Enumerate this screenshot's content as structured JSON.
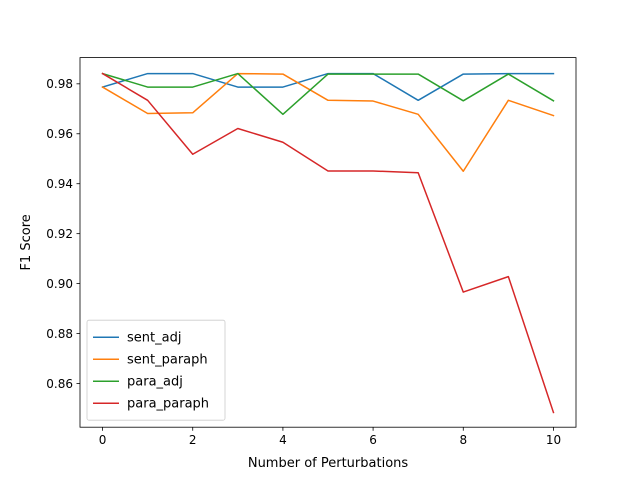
{
  "chart_data": {
    "type": "line",
    "title": "",
    "xlabel": "Number of Perturbations",
    "ylabel": "F1 Score",
    "xlim": [
      -0.5,
      10.5
    ],
    "ylim": [
      0.8425,
      0.9905
    ],
    "x_ticks": [
      0,
      2,
      4,
      6,
      8,
      10
    ],
    "x_tick_labels": [
      "0",
      "2",
      "4",
      "6",
      "8",
      "10"
    ],
    "y_ticks": [
      0.86,
      0.88,
      0.9,
      0.92,
      0.94,
      0.96,
      0.98
    ],
    "y_tick_labels": [
      "0.86",
      "0.88",
      "0.90",
      "0.92",
      "0.94",
      "0.96",
      "0.98"
    ],
    "grid": false,
    "legend_position": "lower-left",
    "x": [
      0,
      1,
      2,
      3,
      4,
      5,
      6,
      7,
      8,
      9,
      10
    ],
    "series": [
      {
        "name": "sent_adj",
        "color": "#1f77b4",
        "values": [
          0.9787,
          0.9841,
          0.9841,
          0.9787,
          0.9787,
          0.9841,
          0.9841,
          0.9734,
          0.9839,
          0.9841,
          0.9841
        ]
      },
      {
        "name": "sent_paraph",
        "color": "#ff7f0e",
        "values": [
          0.9787,
          0.9681,
          0.9684,
          0.9841,
          0.9839,
          0.9734,
          0.9731,
          0.9678,
          0.945,
          0.9734,
          0.9673
        ]
      },
      {
        "name": "para_adj",
        "color": "#2ca02c",
        "values": [
          0.9841,
          0.9787,
          0.9787,
          0.9841,
          0.9678,
          0.9839,
          0.9839,
          0.9839,
          0.9732,
          0.9839,
          0.9732
        ]
      },
      {
        "name": "para_paraph",
        "color": "#d62728",
        "values": [
          0.9841,
          0.9734,
          0.9518,
          0.9621,
          0.9566,
          0.9451,
          0.9451,
          0.9444,
          0.8966,
          0.9028,
          0.8484
        ]
      }
    ]
  }
}
